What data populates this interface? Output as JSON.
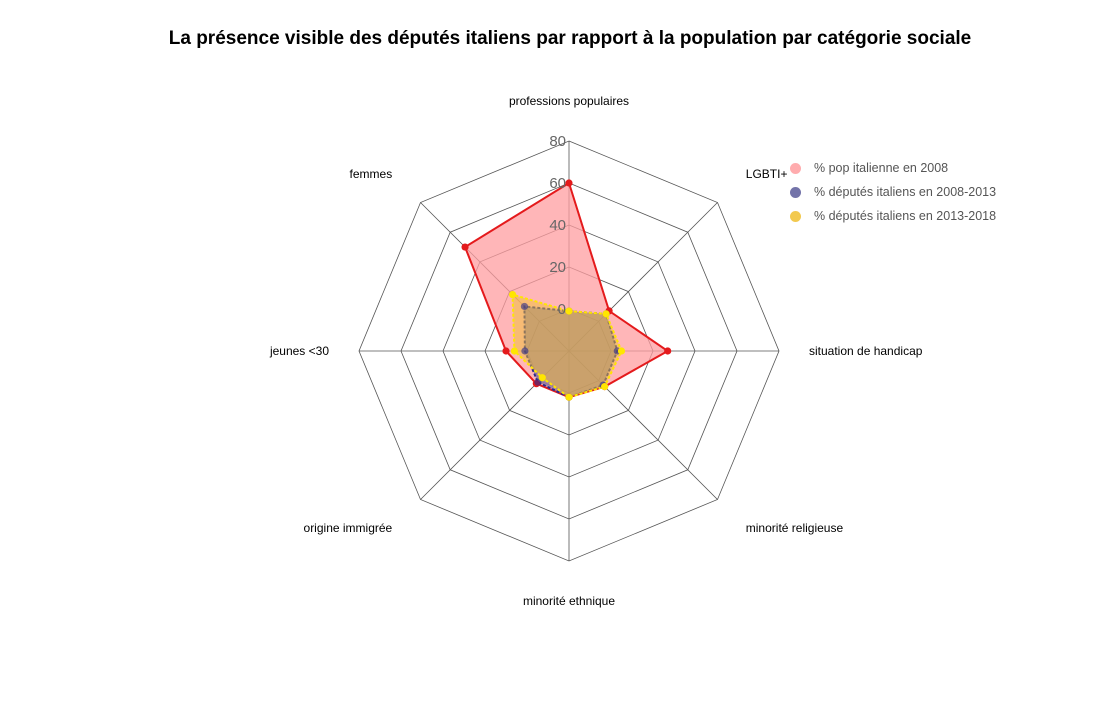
{
  "chart_data": {
    "type": "radar",
    "title": "La présence visible des députés italiens par rapport à la population par catégorie sociale",
    "axes": [
      "professions populaires",
      "LGBTI+",
      "situation de handicap",
      "minorité religieuse",
      "minorité ethnique",
      "origine immigrée",
      "jeunes <30",
      "femmes"
    ],
    "r_ticks": [
      0,
      20,
      40,
      60,
      80
    ],
    "r_lim": [
      -20,
      80
    ],
    "grid": "octagon",
    "legend_position": "top-right",
    "series": [
      {
        "name": "% pop italienne en 2008",
        "values": [
          60,
          7,
          27,
          4,
          2,
          2,
          10,
          50
        ],
        "color": "#e41a1c",
        "fill": "#ff9ea0",
        "fill_opacity": 0.75
      },
      {
        "name": "% députés italiens en 2008-2013",
        "values": [
          -1,
          5,
          3,
          3,
          2,
          1,
          1,
          10
        ],
        "color": "#2b2b8a",
        "fill": "#5a5a9a",
        "fill_opacity": 0.55
      },
      {
        "name": "% députés italiens en 2013-2018",
        "values": [
          -1,
          5,
          5,
          4,
          2,
          -2,
          6,
          18
        ],
        "color": "#ffe600",
        "fill": "#f0c030",
        "fill_opacity": 0.5
      }
    ]
  }
}
